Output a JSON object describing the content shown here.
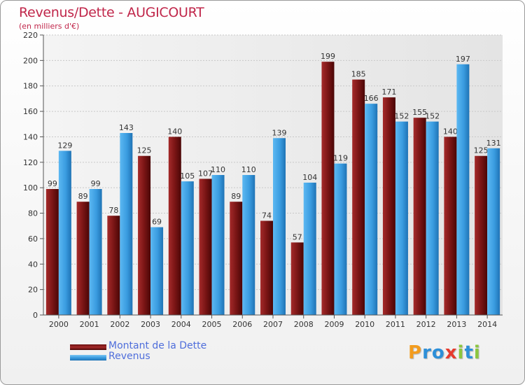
{
  "chart_data": {
    "type": "bar",
    "title": "Revenus/Dette - AUGICOURT",
    "subtitle": "(en milliers d'€)",
    "categories": [
      "2000",
      "2001",
      "2002",
      "2003",
      "2004",
      "2005",
      "2006",
      "2007",
      "2008",
      "2009",
      "2010",
      "2011",
      "2012",
      "2013",
      "2014"
    ],
    "series": [
      {
        "name": "Montant de la Dette",
        "color": "#8b1a1a",
        "values": [
          99,
          89,
          78,
          125,
          140,
          107,
          89,
          74,
          57,
          199,
          185,
          171,
          155,
          140,
          125
        ]
      },
      {
        "name": "Revenus",
        "color": "#45a6e8",
        "values": [
          129,
          99,
          143,
          69,
          105,
          110,
          110,
          139,
          104,
          119,
          166,
          152,
          152,
          197,
          131
        ]
      }
    ],
    "ylim": [
      0,
      220
    ],
    "yticks": [
      0,
      20,
      40,
      60,
      80,
      100,
      120,
      140,
      160,
      180,
      200,
      220
    ],
    "grid": true,
    "legend_position": "bottom-left"
  },
  "logo": {
    "letters": [
      {
        "char": "P",
        "color": "#f39c1e"
      },
      {
        "char": "r",
        "color": "#2d8fd8"
      },
      {
        "char": "o",
        "color": "#2d8fd8"
      },
      {
        "char": "x",
        "color": "#e63b2e"
      },
      {
        "char": "i",
        "color": "#8cc63f"
      },
      {
        "char": "t",
        "color": "#2d8fd8"
      },
      {
        "char": "i",
        "color": "#8cc63f"
      }
    ]
  }
}
